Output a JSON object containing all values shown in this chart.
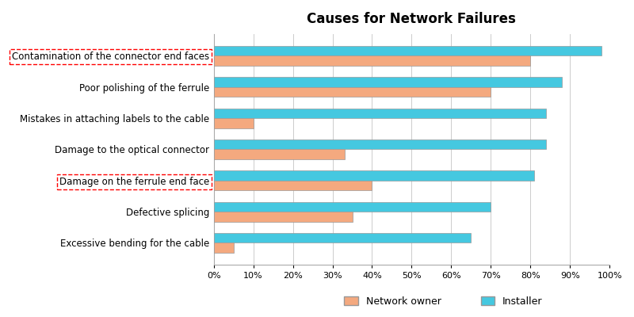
{
  "title": "Causes for Network Failures",
  "categories": [
    "Contamination of the connector end faces",
    "Poor polishing of the ferrule",
    "Mistakes in attaching labels to the cable",
    "Damage to the optical connector",
    "Damage on the ferrule end face",
    "Defective splicing",
    "Excessive bending for the cable"
  ],
  "network_owner": [
    80,
    70,
    10,
    33,
    40,
    35,
    5
  ],
  "installer": [
    98,
    88,
    84,
    84,
    81,
    70,
    65
  ],
  "network_owner_color": "#F4A97F",
  "installer_color": "#45C8E0",
  "bar_edge_color": "#999999",
  "background_color": "#FFFFFF",
  "plot_bg_color": "#FFFFFF",
  "title_fontsize": 12,
  "label_fontsize": 8.5,
  "tick_fontsize": 8,
  "legend_fontsize": 9,
  "highlighted_categories": [
    0,
    4
  ],
  "highlight_color": "red",
  "xlim": [
    0,
    100
  ],
  "xticks": [
    0,
    10,
    20,
    30,
    40,
    50,
    60,
    70,
    80,
    90,
    100
  ],
  "xtick_labels": [
    "0%",
    "10%",
    "20%",
    "30%",
    "40%",
    "50%",
    "60%",
    "70%",
    "80%",
    "90%",
    "100%"
  ],
  "bar_height": 0.32,
  "figsize": [
    8.0,
    4.0
  ],
  "dpi": 100
}
